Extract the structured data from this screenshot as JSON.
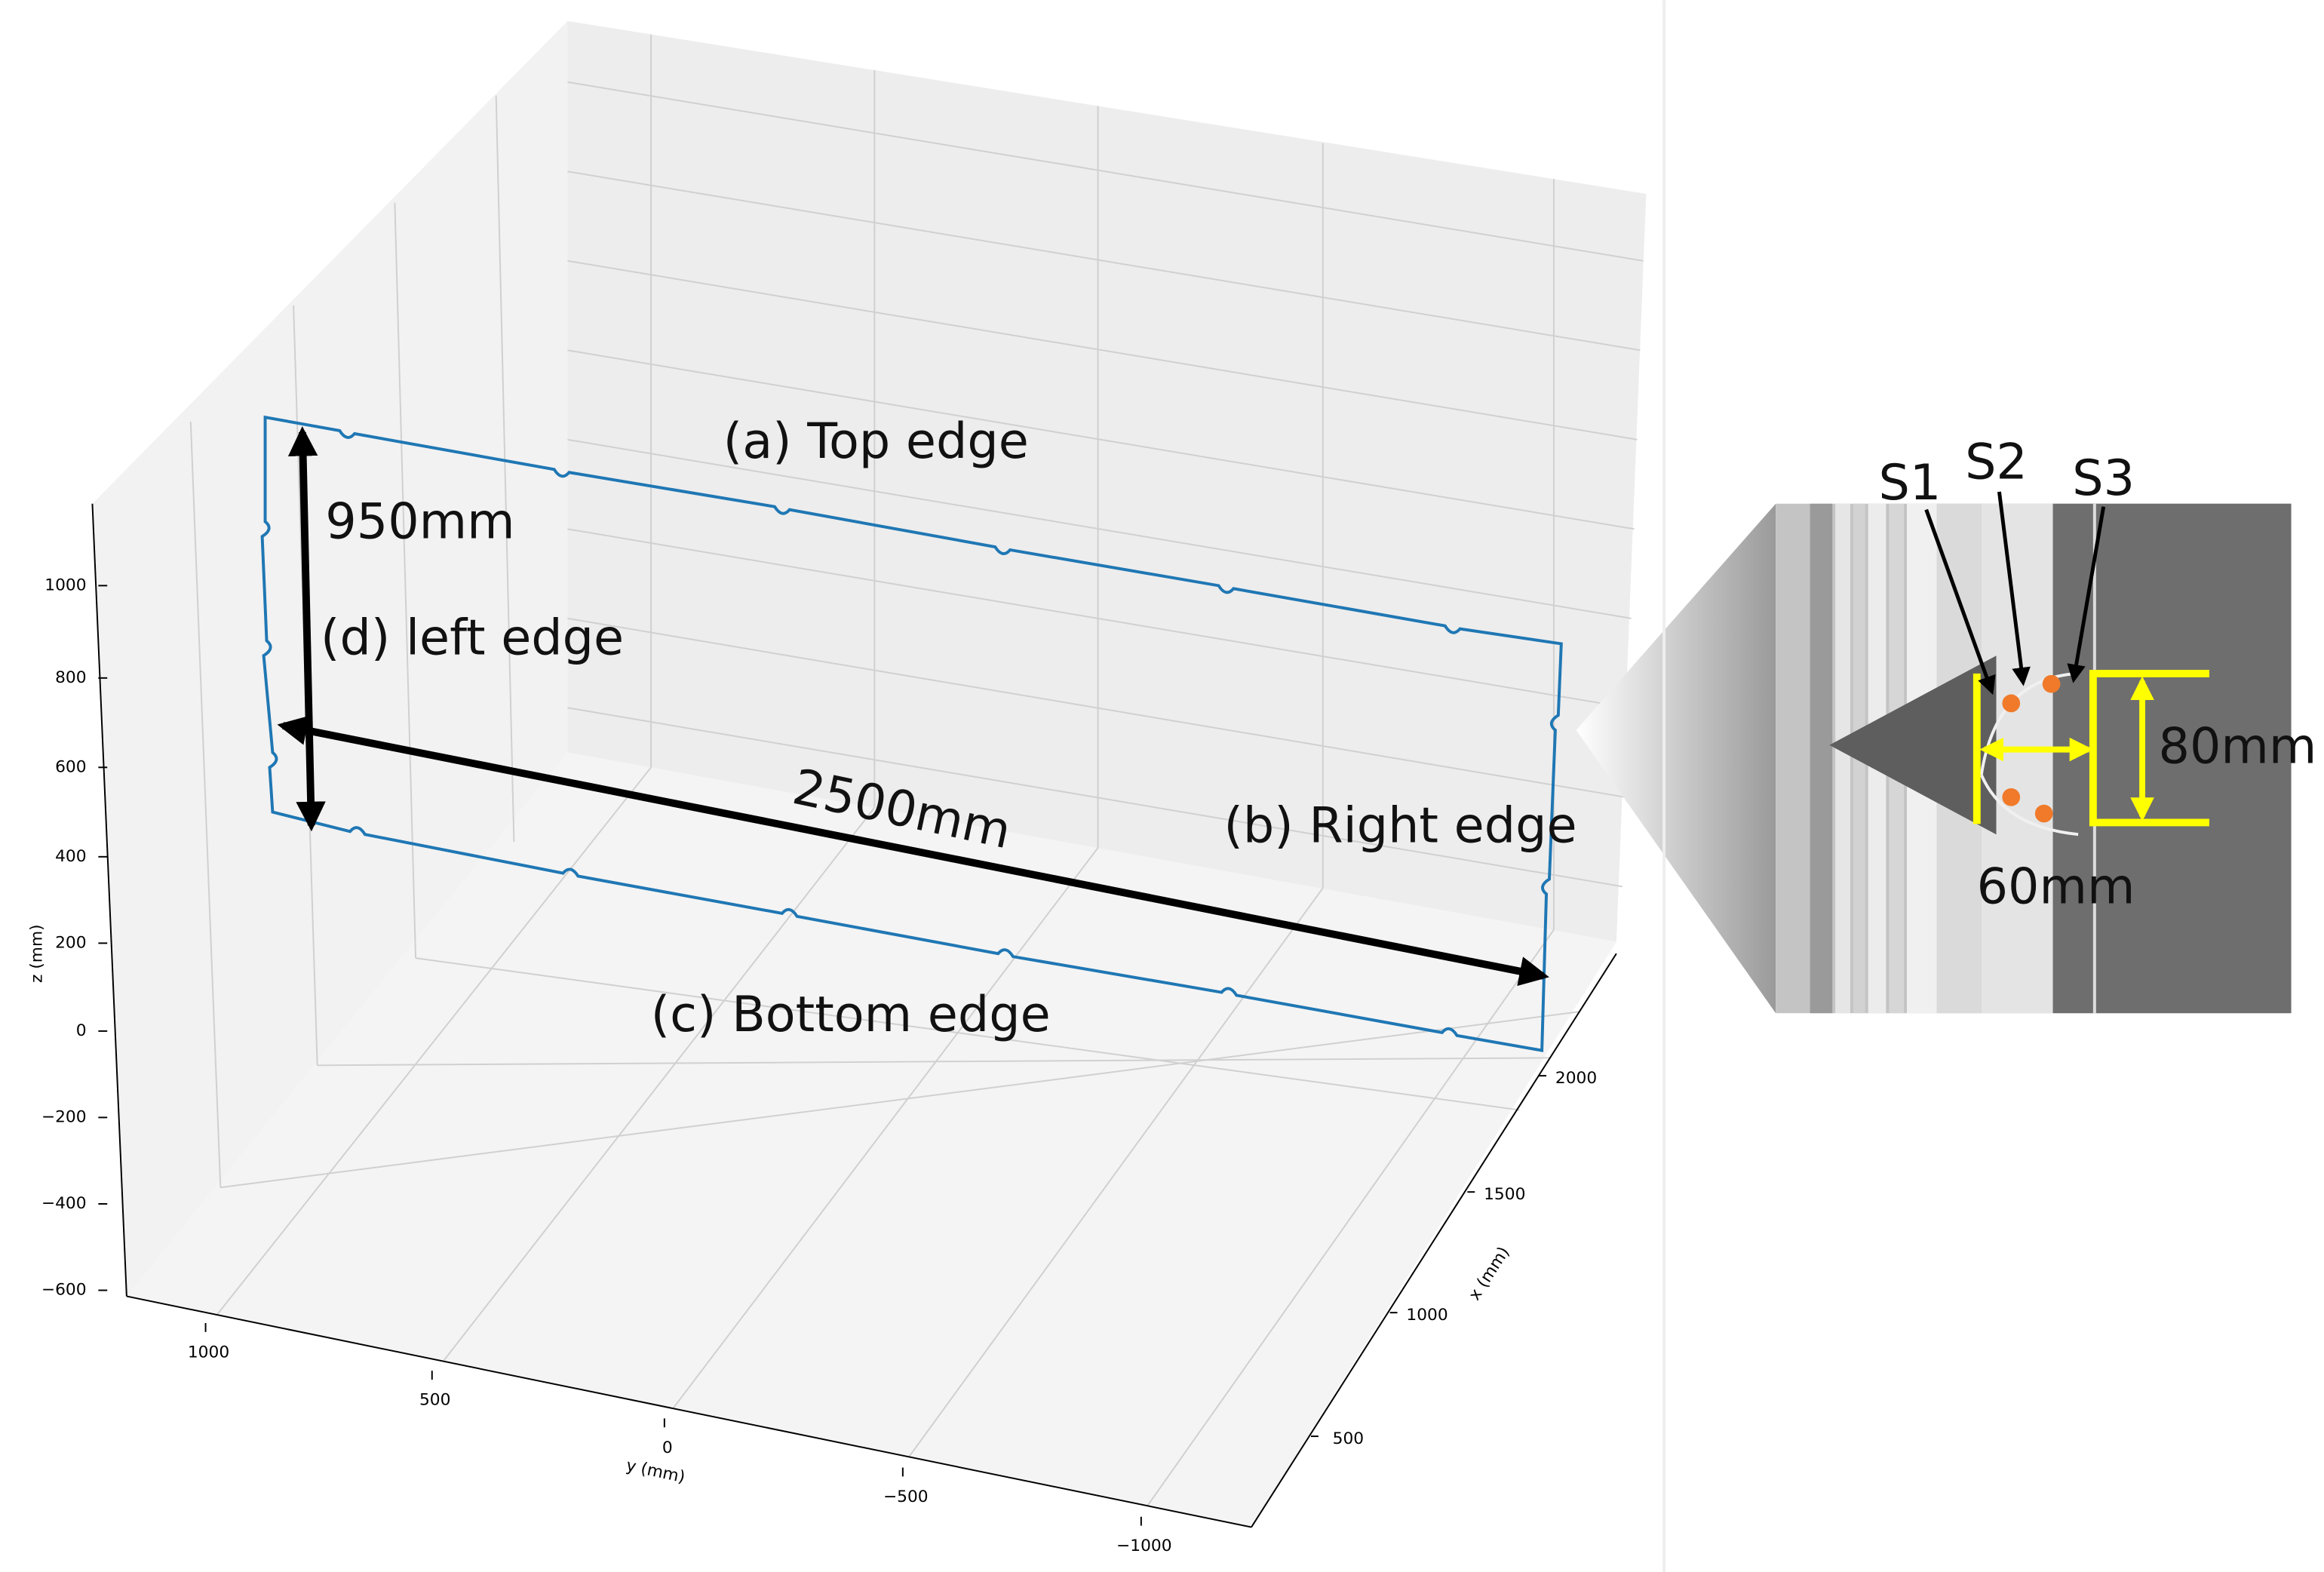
{
  "plot": {
    "axes": {
      "z": {
        "label": "z (mm)",
        "ticks": [
          1000,
          800,
          600,
          400,
          200,
          0,
          {
            "value": -200,
            "label": "−200"
          },
          {
            "value": -400,
            "label": "−400"
          },
          {
            "value": -600,
            "label": "−600"
          }
        ]
      },
      "y": {
        "label": "y (mm)",
        "ticks": [
          1000,
          500,
          0,
          {
            "value": -500,
            "label": "−500"
          },
          {
            "value": -1000,
            "label": "−1000"
          }
        ]
      },
      "x": {
        "label": "x (mm)",
        "ticks": [
          500,
          1000,
          1500,
          2000
        ]
      }
    },
    "annotations": {
      "top_edge": "(a) Top edge",
      "height": "950mm",
      "left_edge": "(d) left edge",
      "length": "2500mm",
      "right_edge": "(b) Right edge",
      "bottom_edge": "(c) Bottom edge"
    }
  },
  "inset": {
    "sensors": [
      "S1",
      "S2",
      "S3"
    ],
    "height": "80mm",
    "width": "60mm"
  }
}
